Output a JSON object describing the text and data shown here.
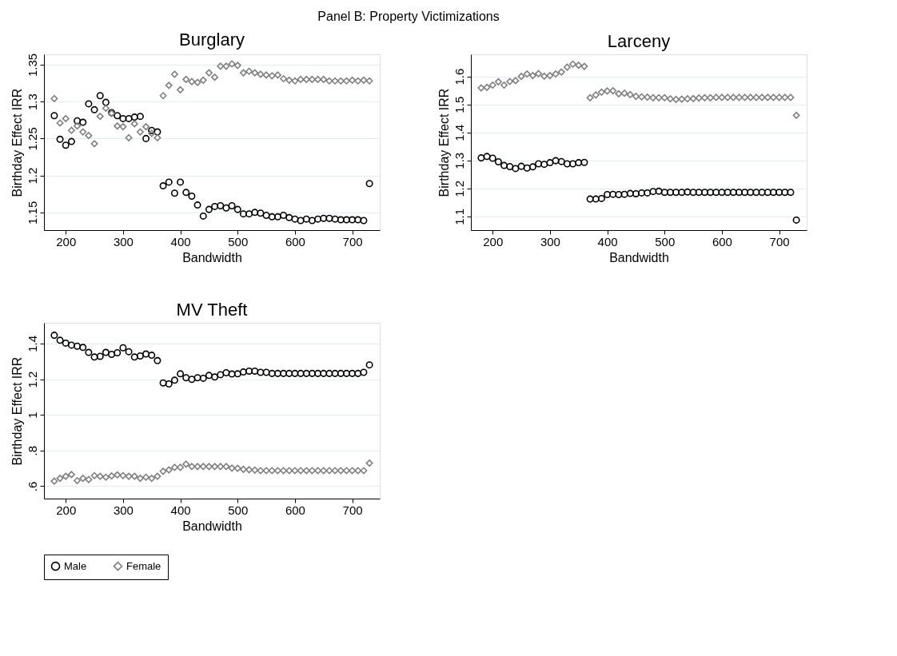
{
  "chart_data": [
    {
      "type": "scatter",
      "title": "Burglary",
      "annotations": [
        "Panel B: Property Victimizations"
      ],
      "xlabel": "Bandwidth",
      "ylabel": "Birthday Effect IRR",
      "grid": "y",
      "x": [
        180,
        190,
        200,
        210,
        220,
        230,
        240,
        250,
        260,
        270,
        280,
        290,
        300,
        310,
        320,
        330,
        340,
        350,
        360,
        370,
        380,
        390,
        400,
        410,
        420,
        430,
        440,
        450,
        460,
        470,
        480,
        490,
        500,
        510,
        520,
        530,
        540,
        550,
        560,
        570,
        580,
        590,
        600,
        610,
        620,
        630,
        640,
        650,
        660,
        670,
        680,
        690,
        700,
        710,
        720,
        730
      ],
      "xlim": [
        162,
        748
      ],
      "xticks": [
        200,
        300,
        400,
        500,
        600,
        700
      ],
      "ylim": [
        1.126,
        1.364
      ],
      "yticks": [
        1.15,
        1.2,
        1.25,
        1.3,
        1.35
      ],
      "series": [
        {
          "color": "#000000",
          "marker": "circle",
          "values": [
            1.281,
            1.249,
            1.241,
            1.246,
            1.274,
            1.272,
            1.297,
            1.289,
            1.308,
            1.299,
            1.285,
            1.281,
            1.277,
            1.277,
            1.279,
            1.28,
            1.25,
            1.261,
            1.259,
            1.186,
            1.191,
            1.176,
            1.191,
            1.177,
            1.172,
            1.16,
            1.145,
            1.154,
            1.158,
            1.159,
            1.156,
            1.159,
            1.154,
            1.148,
            1.148,
            1.15,
            1.149,
            1.146,
            1.144,
            1.144,
            1.146,
            1.143,
            1.141,
            1.139,
            1.141,
            1.139,
            1.141,
            1.142,
            1.142,
            1.141,
            1.14,
            1.14,
            1.14,
            1.14,
            1.139,
            1.189
          ]
        },
        {
          "color": "#808080",
          "marker": "diamond",
          "values": [
            1.304,
            1.271,
            1.277,
            1.261,
            1.267,
            1.259,
            1.254,
            1.243,
            1.28,
            1.291,
            1.284,
            1.267,
            1.266,
            1.251,
            1.27,
            1.259,
            1.266,
            1.257,
            1.251,
            1.308,
            1.322,
            1.337,
            1.316,
            1.33,
            1.327,
            1.326,
            1.329,
            1.339,
            1.333,
            1.348,
            1.348,
            1.351,
            1.349,
            1.339,
            1.341,
            1.339,
            1.337,
            1.336,
            1.335,
            1.336,
            1.331,
            1.329,
            1.328,
            1.33,
            1.33,
            1.33,
            1.33,
            1.33,
            1.328,
            1.328,
            1.328,
            1.328,
            1.329,
            1.328,
            1.329,
            1.328
          ]
        }
      ]
    },
    {
      "type": "scatter",
      "title": "Larceny",
      "xlabel": "Bandwidth",
      "ylabel": "Birthday Effect IRR",
      "grid": "y",
      "x": [
        180,
        190,
        200,
        210,
        220,
        230,
        240,
        250,
        260,
        270,
        280,
        290,
        300,
        310,
        320,
        330,
        340,
        350,
        360,
        370,
        380,
        390,
        400,
        410,
        420,
        430,
        440,
        450,
        460,
        470,
        480,
        490,
        500,
        510,
        520,
        530,
        540,
        550,
        560,
        570,
        580,
        590,
        600,
        610,
        620,
        630,
        640,
        650,
        660,
        670,
        680,
        690,
        700,
        710,
        720,
        730
      ],
      "xlim": [
        162,
        748
      ],
      "xticks": [
        200,
        300,
        400,
        500,
        600,
        700
      ],
      "ylim": [
        1.051,
        1.679
      ],
      "yticks": [
        1.1,
        1.2,
        1.3,
        1.4,
        1.5,
        1.6
      ],
      "series": [
        {
          "color": "#000000",
          "marker": "circle",
          "values": [
            1.309,
            1.314,
            1.308,
            1.295,
            1.282,
            1.278,
            1.271,
            1.279,
            1.273,
            1.277,
            1.288,
            1.286,
            1.292,
            1.299,
            1.296,
            1.288,
            1.288,
            1.292,
            1.293,
            1.162,
            1.162,
            1.164,
            1.178,
            1.179,
            1.178,
            1.179,
            1.182,
            1.181,
            1.184,
            1.184,
            1.189,
            1.19,
            1.186,
            1.186,
            1.186,
            1.186,
            1.187,
            1.186,
            1.186,
            1.186,
            1.186,
            1.186,
            1.186,
            1.186,
            1.186,
            1.186,
            1.186,
            1.186,
            1.186,
            1.186,
            1.186,
            1.186,
            1.186,
            1.186,
            1.186,
            1.087
          ]
        },
        {
          "color": "#808080",
          "marker": "diamond",
          "values": [
            1.559,
            1.561,
            1.569,
            1.581,
            1.569,
            1.582,
            1.585,
            1.6,
            1.609,
            1.603,
            1.61,
            1.601,
            1.603,
            1.609,
            1.616,
            1.633,
            1.644,
            1.64,
            1.636,
            1.524,
            1.534,
            1.544,
            1.548,
            1.549,
            1.538,
            1.54,
            1.535,
            1.529,
            1.527,
            1.526,
            1.524,
            1.524,
            1.524,
            1.52,
            1.518,
            1.519,
            1.52,
            1.521,
            1.523,
            1.524,
            1.524,
            1.525,
            1.525,
            1.525,
            1.525,
            1.525,
            1.525,
            1.525,
            1.525,
            1.525,
            1.525,
            1.525,
            1.525,
            1.525,
            1.525,
            1.461
          ]
        }
      ]
    },
    {
      "type": "scatter",
      "title": "MV Theft",
      "xlabel": "Bandwidth",
      "ylabel": "Birthday Effect IRR",
      "grid": "y",
      "legend": "bottom",
      "x": [
        180,
        190,
        200,
        210,
        220,
        230,
        240,
        250,
        260,
        270,
        280,
        290,
        300,
        310,
        320,
        330,
        340,
        350,
        360,
        370,
        380,
        390,
        400,
        410,
        420,
        430,
        440,
        450,
        460,
        470,
        480,
        490,
        500,
        510,
        520,
        530,
        540,
        550,
        560,
        570,
        580,
        590,
        600,
        610,
        620,
        630,
        640,
        650,
        660,
        670,
        680,
        690,
        700,
        710,
        720,
        730
      ],
      "xlim": [
        162,
        748
      ],
      "xticks": [
        200,
        300,
        400,
        500,
        600,
        700
      ],
      "ylim": [
        0.53,
        1.516
      ],
      "yticks": [
        {
          "value": 0.6,
          "label": ".6"
        },
        {
          "value": 0.8,
          "label": ".8"
        },
        1,
        1.2,
        1.4
      ],
      "series": [
        {
          "name": "Male",
          "color": "#000000",
          "marker": "circle",
          "values": [
            1.446,
            1.418,
            1.402,
            1.391,
            1.385,
            1.378,
            1.35,
            1.324,
            1.328,
            1.35,
            1.339,
            1.348,
            1.376,
            1.354,
            1.324,
            1.33,
            1.341,
            1.334,
            1.304,
            1.179,
            1.173,
            1.194,
            1.23,
            1.208,
            1.199,
            1.208,
            1.205,
            1.221,
            1.212,
            1.225,
            1.236,
            1.229,
            1.23,
            1.24,
            1.245,
            1.245,
            1.238,
            1.238,
            1.232,
            1.232,
            1.232,
            1.232,
            1.232,
            1.232,
            1.232,
            1.232,
            1.232,
            1.232,
            1.232,
            1.232,
            1.232,
            1.232,
            1.232,
            1.232,
            1.238,
            1.28
          ]
        },
        {
          "name": "Female",
          "color": "#808080",
          "marker": "diamond",
          "values": [
            0.628,
            0.644,
            0.655,
            0.665,
            0.631,
            0.644,
            0.637,
            0.659,
            0.655,
            0.65,
            0.657,
            0.663,
            0.659,
            0.655,
            0.655,
            0.644,
            0.65,
            0.644,
            0.655,
            0.683,
            0.691,
            0.705,
            0.705,
            0.723,
            0.71,
            0.71,
            0.71,
            0.71,
            0.71,
            0.71,
            0.71,
            0.701,
            0.7,
            0.694,
            0.692,
            0.69,
            0.687,
            0.687,
            0.687,
            0.687,
            0.687,
            0.687,
            0.687,
            0.687,
            0.687,
            0.687,
            0.687,
            0.687,
            0.687,
            0.687,
            0.687,
            0.687,
            0.687,
            0.687,
            0.687,
            0.729
          ]
        }
      ]
    }
  ]
}
